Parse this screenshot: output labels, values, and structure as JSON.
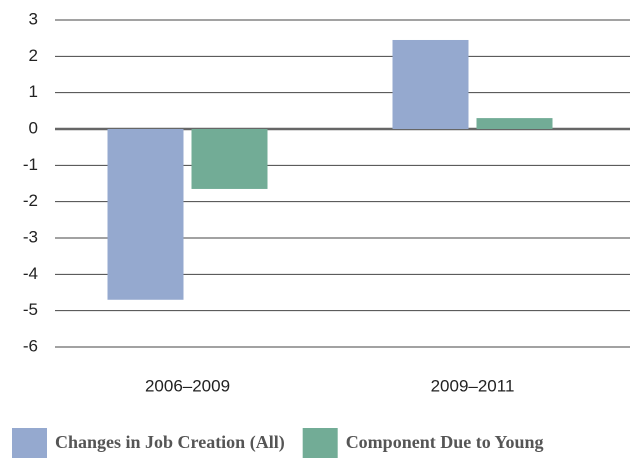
{
  "chart_data": {
    "type": "bar",
    "categories": [
      "2006–2009",
      "2009–2011"
    ],
    "series": [
      {
        "name": "Changes in Job Creation (All)",
        "color": "#95a9cf",
        "values": [
          -4.7,
          2.45
        ]
      },
      {
        "name": "Component Due to Young",
        "color": "#72ac96",
        "values": [
          -1.65,
          0.3
        ]
      }
    ],
    "ylim": [
      -6,
      3
    ],
    "yticks": [
      -6,
      -5,
      -4,
      -3,
      -2,
      -1,
      0,
      1,
      2,
      3
    ],
    "grid": true,
    "legend": "bottom"
  }
}
